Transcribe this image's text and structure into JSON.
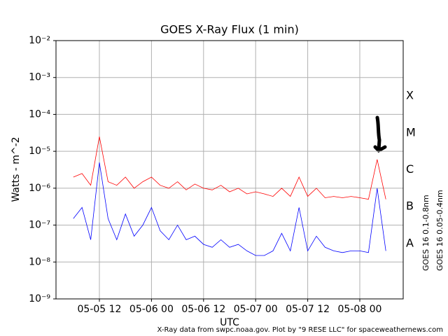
{
  "chart_data": {
    "type": "line",
    "title": "GOES X-Ray Flux (1 min)",
    "x_label": "UTC",
    "y_label": "Watts - m^-2",
    "log_y": true,
    "grid": true,
    "footnote": "X-Ray data from swpc.noaa.gov. Plot by \"9 RESE LLC\" for spaceweathernews.com",
    "flare_classes": [
      "A",
      "B",
      "C",
      "M",
      "X"
    ],
    "xlim": [
      "05-05 02",
      "05-08 10"
    ],
    "xticks": [
      "05-05 12",
      "05-06 00",
      "05-06 12",
      "05-07 00",
      "05-07 12",
      "05-08 00"
    ],
    "ylim": [
      1e-09,
      0.01
    ],
    "yticks": [
      {
        "value": 1e-09,
        "label": "10⁻⁹"
      },
      {
        "value": 1e-08,
        "label": "10⁻⁸"
      },
      {
        "value": 1e-07,
        "label": "10⁻⁷"
      },
      {
        "value": 1e-06,
        "label": "10⁻⁶"
      },
      {
        "value": 1e-05,
        "label": "10⁻⁵"
      },
      {
        "value": 0.0001,
        "label": "10⁻⁴"
      },
      {
        "value": 0.001,
        "label": "10⁻³"
      },
      {
        "value": 0.01,
        "label": "10⁻²"
      }
    ],
    "x": [
      "05-05 06",
      "05-05 08",
      "05-05 10",
      "05-05 12",
      "05-05 14",
      "05-05 16",
      "05-05 18",
      "05-05 20",
      "05-05 22",
      "05-06 00",
      "05-06 02",
      "05-06 04",
      "05-06 06",
      "05-06 08",
      "05-06 10",
      "05-06 12",
      "05-06 14",
      "05-06 16",
      "05-06 18",
      "05-06 20",
      "05-06 22",
      "05-07 00",
      "05-07 02",
      "05-07 04",
      "05-07 06",
      "05-07 08",
      "05-07 10",
      "05-07 12",
      "05-07 14",
      "05-07 16",
      "05-07 18",
      "05-07 20",
      "05-07 22",
      "05-08 00",
      "05-08 02",
      "05-08 04",
      "05-08 06"
    ],
    "series": [
      {
        "name": "GOES 16 0.1-0.8nm",
        "color": "#ff0000",
        "values": [
          2e-06,
          2.5e-06,
          1.2e-06,
          2.5e-05,
          1.5e-06,
          1.2e-06,
          2e-06,
          1e-06,
          1.5e-06,
          2e-06,
          1.2e-06,
          1e-06,
          1.5e-06,
          9e-07,
          1.3e-06,
          1e-06,
          9e-07,
          1.2e-06,
          8e-07,
          1e-06,
          7e-07,
          8e-07,
          7e-07,
          6e-07,
          1e-06,
          6e-07,
          2e-06,
          6e-07,
          1e-06,
          5.5e-07,
          6e-07,
          5.5e-07,
          6e-07,
          5.5e-07,
          5e-07,
          6e-06,
          5e-07
        ]
      },
      {
        "name": "GOES 16 0.05-0.4nm",
        "color": "#0000ff",
        "values": [
          1.5e-07,
          3e-07,
          4e-08,
          5e-06,
          1.5e-07,
          4e-08,
          2e-07,
          5e-08,
          1e-07,
          3e-07,
          7e-08,
          4e-08,
          1e-07,
          4e-08,
          5e-08,
          3e-08,
          2.5e-08,
          4e-08,
          2.5e-08,
          3e-08,
          2e-08,
          1.5e-08,
          1.5e-08,
          2e-08,
          6e-08,
          2e-08,
          3e-07,
          2e-08,
          5e-08,
          2.5e-08,
          2e-08,
          1.8e-08,
          2e-08,
          2e-08,
          1.8e-08,
          1e-06,
          2e-08
        ]
      }
    ]
  }
}
